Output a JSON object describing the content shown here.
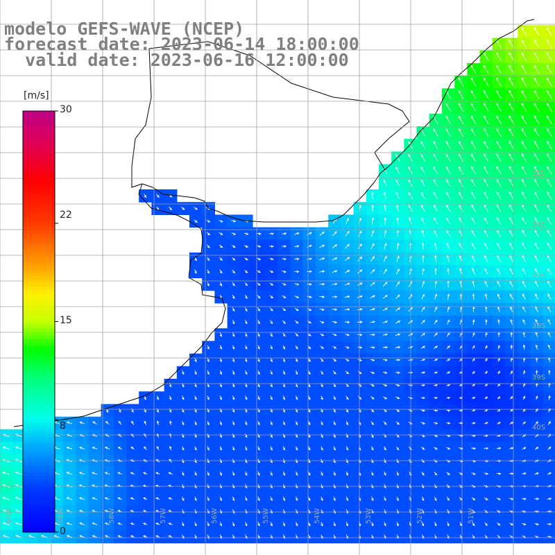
{
  "title": {
    "line1": "modelo GEFS-WAVE (NCEP)",
    "line2": "forecast date: 2023-06-14 18:00:00",
    "line3": "valid date: 2023-06-16 12:00:00"
  },
  "colorbar": {
    "unit": "[m/s]",
    "ticks": [
      "30",
      "22",
      "15",
      "8",
      "0"
    ],
    "tick_values": [
      30,
      22,
      15,
      8,
      0
    ],
    "colors": [
      "#0000ff",
      "#00c8ff",
      "#00ffe0",
      "#00ff00",
      "#b0ff00",
      "#ffff00",
      "#ffa000",
      "#ff4000",
      "#ff0000",
      "#e0004a",
      "#c0007a"
    ]
  },
  "map": {
    "background": "#ffffff",
    "grid_color": "#a0a0a0",
    "lat_labels": [
      "35S",
      "36S",
      "37S",
      "38S",
      "39S",
      "40S"
    ],
    "lon_labels": [
      "60W",
      "59W",
      "58W",
      "57W",
      "56W",
      "55W",
      "54W",
      "53W",
      "52W",
      "51W"
    ],
    "lat_values": [
      -35,
      -36,
      -37,
      -38,
      -39,
      -40
    ],
    "lon_values": [
      -60,
      -59,
      -58,
      -57,
      -56,
      -55,
      -54,
      -53,
      -52,
      -51
    ],
    "field_description_values": {
      "offshore_max_ms": 12,
      "inshore_min_ms": 1
    }
  }
}
